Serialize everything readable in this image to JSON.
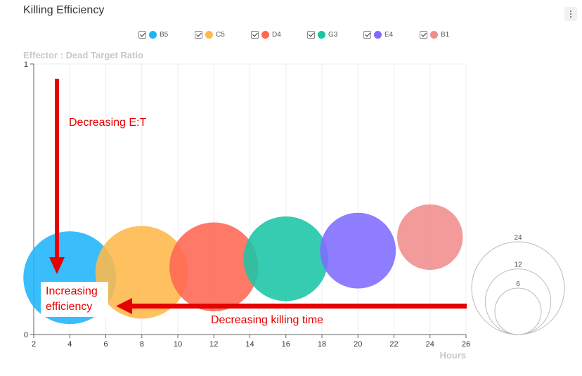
{
  "window": {
    "title": "Killing Efficiency"
  },
  "colors": {
    "B5": "#1eb4fa",
    "C5": "#ffb84a",
    "D4": "#ff6753",
    "G3": "#1ac5a6",
    "E4": "#7e6bff",
    "B1": "#f18c8c",
    "annotation": "#e60000"
  },
  "legend": [
    {
      "label": "B5",
      "checked": true
    },
    {
      "label": "C5",
      "checked": true
    },
    {
      "label": "D4",
      "checked": true
    },
    {
      "label": "G3",
      "checked": true
    },
    {
      "label": "E4",
      "checked": true
    },
    {
      "label": "B1",
      "checked": true
    }
  ],
  "chart_data": {
    "type": "bubble",
    "title": "Killing Efficiency",
    "ylabel": "Effector : Dead Target Ratio",
    "xlabel": "Hours",
    "xlim": [
      2,
      26
    ],
    "ylim": [
      0,
      1
    ],
    "xticks": [
      "2",
      "4",
      "6",
      "8",
      "10",
      "12",
      "14",
      "16",
      "18",
      "20",
      "22",
      "24",
      "26"
    ],
    "yticks": [
      "0",
      "1"
    ],
    "grid": true,
    "legend_position": "top",
    "series": [
      {
        "name": "B5",
        "x": 4,
        "y": 0.21,
        "size": 24
      },
      {
        "name": "C5",
        "x": 8,
        "y": 0.23,
        "size": 24
      },
      {
        "name": "D4",
        "x": 12,
        "y": 0.25,
        "size": 22
      },
      {
        "name": "G3",
        "x": 16,
        "y": 0.28,
        "size": 20
      },
      {
        "name": "E4",
        "x": 20,
        "y": 0.31,
        "size": 16
      },
      {
        "name": "B1",
        "x": 24,
        "y": 0.36,
        "size": 12
      }
    ],
    "size_legend": [
      "24",
      "12",
      "6"
    ],
    "annotations": {
      "vertical": "Decreasing E:T",
      "horizontal": "Decreasing killing time",
      "box": "Increasing efficiency"
    }
  }
}
